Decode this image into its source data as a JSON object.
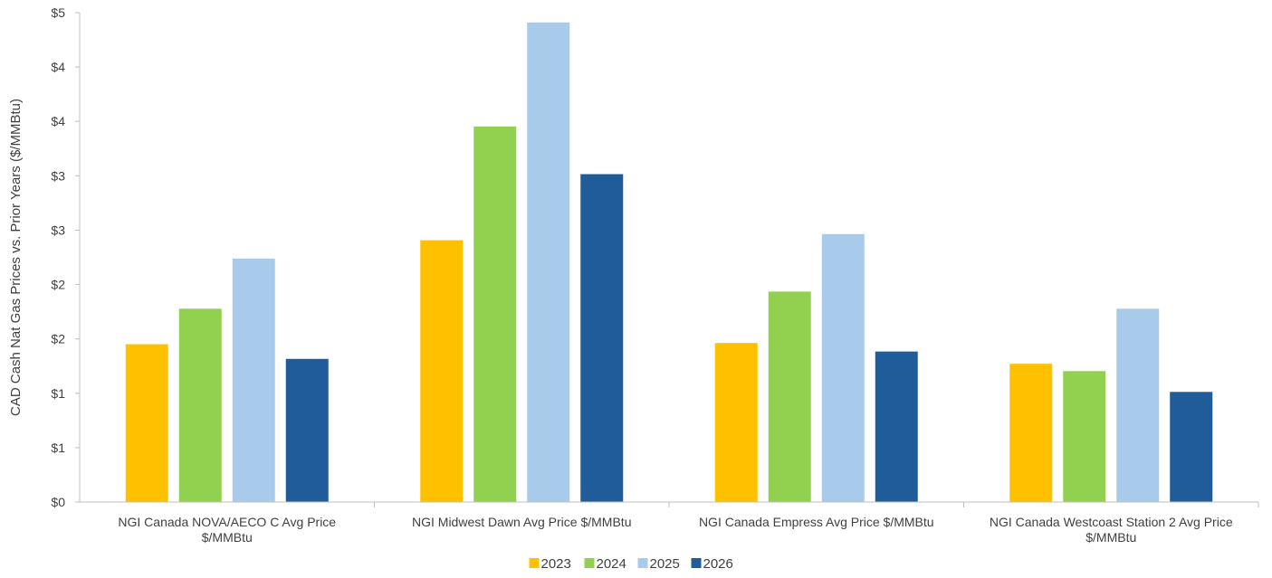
{
  "chart_data": {
    "type": "bar",
    "ylabel": "CAD Cash Nat Gas Prices vs. Prior Years ($/MMBtu)",
    "xlabel": "",
    "ylim": [
      0,
      4
    ],
    "y_tick_labels": [
      "$0",
      "$1",
      "$1",
      "$2",
      "$2",
      "$3",
      "$3",
      "$4",
      "$4",
      "$5"
    ],
    "categories": [
      [
        "NGI Canada NOVA/AECO C Avg Price",
        "$/MMBtu"
      ],
      [
        "NGI Midwest Dawn Avg Price $/MMBtu"
      ],
      [
        "NGI Canada Empress Avg Price $/MMBtu"
      ],
      [
        "NGI Canada Westcoast Station 2 Avg Price",
        "$/MMBtu"
      ]
    ],
    "series": [
      {
        "name": "2023",
        "color": "#FFC000",
        "values": [
          1.29,
          2.14,
          1.3,
          1.13
        ]
      },
      {
        "name": "2024",
        "color": "#92D050",
        "values": [
          1.58,
          3.07,
          1.72,
          1.07
        ]
      },
      {
        "name": "2025",
        "color": "#A9CBEB",
        "values": [
          1.99,
          3.92,
          2.19,
          1.58
        ]
      },
      {
        "name": "2026",
        "color": "#1F5C99",
        "values": [
          1.17,
          2.68,
          1.23,
          0.9
        ]
      }
    ],
    "grid": false,
    "legend_position": "bottom"
  }
}
